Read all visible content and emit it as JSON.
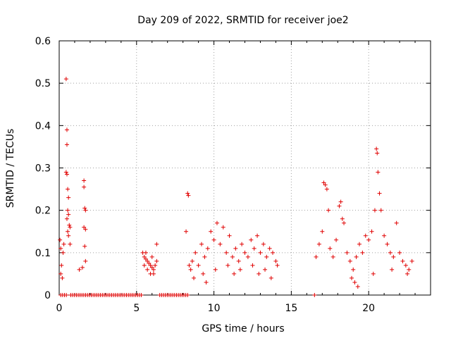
{
  "chart_data": {
    "type": "scatter",
    "title": "Day 209 of 2022, SRMTID for receiver joe2",
    "xlabel": "GPS time / hours",
    "ylabel": "SRMTID / TECUs",
    "xlim": [
      0,
      24
    ],
    "ylim": [
      0,
      0.6
    ],
    "xticks": [
      0,
      5,
      10,
      15,
      20
    ],
    "yticks": [
      0,
      0.1,
      0.2,
      0.3,
      0.4,
      0.5,
      0.6
    ],
    "xtick_labels": [
      "0",
      "5",
      "10",
      "15",
      "20"
    ],
    "ytick_labels": [
      "0",
      "0.1",
      "0.2",
      "0.3",
      "0.4",
      "0.5",
      "0.6"
    ],
    "grid": true,
    "marker": "+",
    "series": [
      {
        "name": "SRMTID",
        "color": "#e00000",
        "points": [
          [
            0.05,
            0.13
          ],
          [
            0.1,
            0.11
          ],
          [
            0.1,
            0.05
          ],
          [
            0.15,
            0.07
          ],
          [
            0.2,
            0.04
          ],
          [
            0.25,
            0.1
          ],
          [
            0.3,
            0.12
          ],
          [
            0.45,
            0.51
          ],
          [
            0.5,
            0.39
          ],
          [
            0.5,
            0.355
          ],
          [
            0.45,
            0.29
          ],
          [
            0.5,
            0.285
          ],
          [
            0.55,
            0.25
          ],
          [
            0.6,
            0.23
          ],
          [
            0.55,
            0.2
          ],
          [
            0.6,
            0.19
          ],
          [
            0.5,
            0.18
          ],
          [
            0.55,
            0.15
          ],
          [
            0.65,
            0.165
          ],
          [
            0.7,
            0.16
          ],
          [
            0.6,
            0.14
          ],
          [
            0.7,
            0.12
          ],
          [
            1.3,
            0.06
          ],
          [
            1.5,
            0.065
          ],
          [
            1.6,
            0.27
          ],
          [
            1.6,
            0.255
          ],
          [
            1.65,
            0.205
          ],
          [
            1.7,
            0.2
          ],
          [
            1.6,
            0.16
          ],
          [
            1.7,
            0.155
          ],
          [
            1.65,
            0.115
          ],
          [
            1.7,
            0.08
          ],
          [
            5.4,
            0.1
          ],
          [
            5.5,
            0.09
          ],
          [
            5.6,
            0.085
          ],
          [
            5.7,
            0.08
          ],
          [
            5.8,
            0.075
          ],
          [
            5.9,
            0.07
          ],
          [
            6.0,
            0.065
          ],
          [
            6.1,
            0.06
          ],
          [
            6.2,
            0.07
          ],
          [
            6.3,
            0.12
          ],
          [
            5.5,
            0.07
          ],
          [
            5.7,
            0.06
          ],
          [
            5.9,
            0.05
          ],
          [
            6.1,
            0.05
          ],
          [
            6.3,
            0.08
          ],
          [
            5.6,
            0.1
          ],
          [
            6.0,
            0.09
          ],
          [
            8.3,
            0.24
          ],
          [
            8.35,
            0.235
          ],
          [
            8.2,
            0.15
          ],
          [
            8.4,
            0.07
          ],
          [
            8.5,
            0.06
          ],
          [
            8.6,
            0.08
          ],
          [
            8.8,
            0.1
          ],
          [
            9.0,
            0.07
          ],
          [
            9.2,
            0.12
          ],
          [
            9.4,
            0.09
          ],
          [
            9.6,
            0.11
          ],
          [
            9.8,
            0.15
          ],
          [
            10.0,
            0.13
          ],
          [
            10.2,
            0.17
          ],
          [
            10.4,
            0.12
          ],
          [
            10.6,
            0.16
          ],
          [
            10.8,
            0.1
          ],
          [
            11.0,
            0.14
          ],
          [
            11.2,
            0.09
          ],
          [
            11.4,
            0.11
          ],
          [
            11.6,
            0.08
          ],
          [
            11.8,
            0.12
          ],
          [
            12.0,
            0.1
          ],
          [
            12.2,
            0.09
          ],
          [
            12.4,
            0.13
          ],
          [
            12.6,
            0.11
          ],
          [
            12.8,
            0.14
          ],
          [
            13.0,
            0.1
          ],
          [
            13.2,
            0.12
          ],
          [
            13.4,
            0.09
          ],
          [
            13.6,
            0.11
          ],
          [
            13.8,
            0.1
          ],
          [
            14.0,
            0.08
          ],
          [
            8.7,
            0.04
          ],
          [
            9.3,
            0.05
          ],
          [
            10.1,
            0.06
          ],
          [
            10.9,
            0.07
          ],
          [
            11.7,
            0.06
          ],
          [
            12.5,
            0.07
          ],
          [
            13.3,
            0.06
          ],
          [
            14.1,
            0.07
          ],
          [
            9.5,
            0.03
          ],
          [
            11.3,
            0.05
          ],
          [
            12.9,
            0.05
          ],
          [
            13.7,
            0.04
          ],
          [
            16.6,
            0.09
          ],
          [
            16.8,
            0.12
          ],
          [
            17.0,
            0.15
          ],
          [
            17.1,
            0.265
          ],
          [
            17.2,
            0.26
          ],
          [
            17.3,
            0.25
          ],
          [
            17.4,
            0.2
          ],
          [
            17.5,
            0.11
          ],
          [
            17.7,
            0.09
          ],
          [
            17.9,
            0.13
          ],
          [
            18.1,
            0.21
          ],
          [
            18.2,
            0.22
          ],
          [
            18.3,
            0.18
          ],
          [
            18.4,
            0.17
          ],
          [
            18.6,
            0.1
          ],
          [
            18.8,
            0.08
          ],
          [
            19.0,
            0.06
          ],
          [
            19.2,
            0.09
          ],
          [
            19.4,
            0.12
          ],
          [
            19.6,
            0.1
          ],
          [
            19.8,
            0.14
          ],
          [
            20.0,
            0.13
          ],
          [
            20.2,
            0.15
          ],
          [
            20.4,
            0.2
          ],
          [
            20.5,
            0.345
          ],
          [
            20.55,
            0.335
          ],
          [
            20.6,
            0.29
          ],
          [
            20.7,
            0.24
          ],
          [
            20.8,
            0.2
          ],
          [
            21.0,
            0.14
          ],
          [
            21.2,
            0.12
          ],
          [
            21.4,
            0.1
          ],
          [
            21.6,
            0.09
          ],
          [
            21.8,
            0.17
          ],
          [
            22.0,
            0.1
          ],
          [
            22.2,
            0.08
          ],
          [
            22.4,
            0.07
          ],
          [
            22.6,
            0.06
          ],
          [
            22.8,
            0.08
          ],
          [
            18.9,
            0.04
          ],
          [
            19.1,
            0.03
          ],
          [
            19.3,
            0.02
          ],
          [
            20.3,
            0.05
          ],
          [
            21.5,
            0.06
          ],
          [
            22.5,
            0.05
          ]
        ],
        "zero_ranges": [
          [
            0.1,
            0.5
          ],
          [
            0.75,
            5.4
          ],
          [
            6.5,
            8.3
          ],
          [
            16.5,
            16.6
          ]
        ]
      }
    ]
  }
}
